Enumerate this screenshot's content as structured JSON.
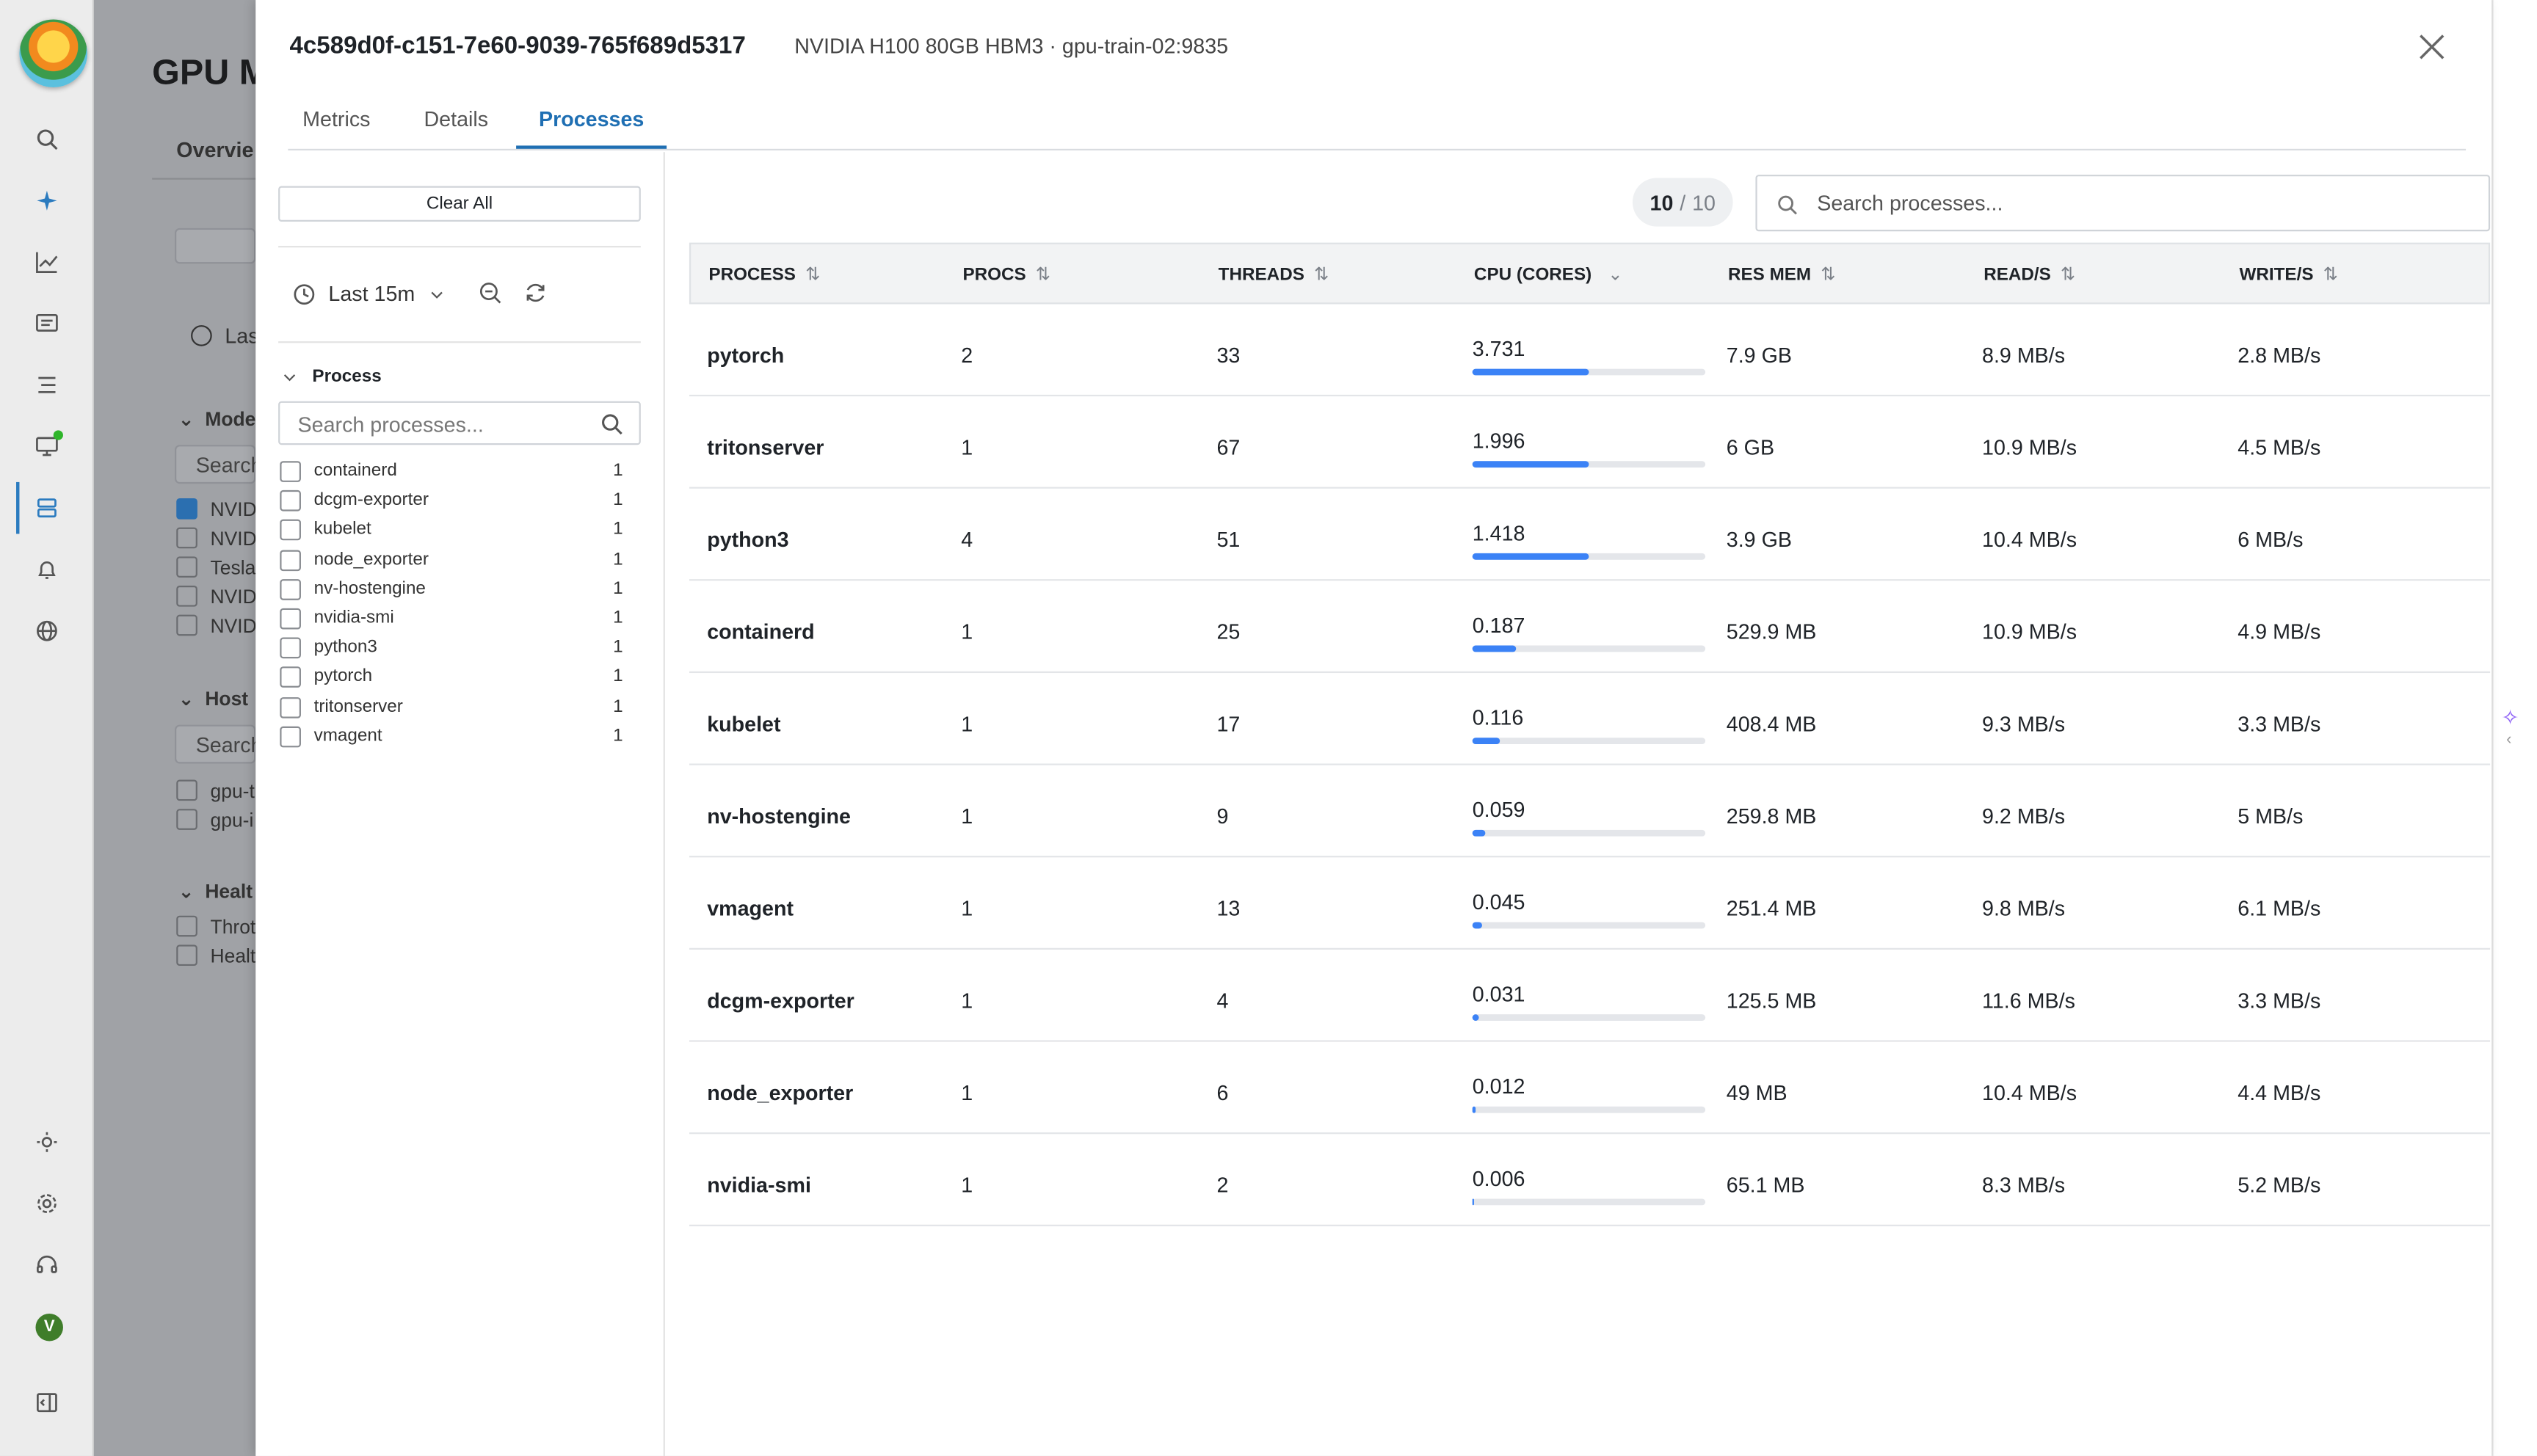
{
  "background": {
    "title": "GPU M",
    "tab": "Overvie",
    "time": "Las",
    "sections": {
      "model": "Mode",
      "host": "Host",
      "health": "Healt"
    },
    "search_placeholder": "Search",
    "model_items": [
      "NVID",
      "NVID",
      "Tesla",
      "NVID",
      "NVID"
    ],
    "host_items": [
      "gpu-t",
      "gpu-i"
    ],
    "health_items": [
      "Throt",
      "Healt"
    ]
  },
  "drawer": {
    "gpu_id": "4c589d0f-c151-7e60-9039-765f689d5317",
    "gpu_subtitle": "NVIDIA H100 80GB HBM3 · gpu-train-02:9835",
    "tabs": [
      {
        "label": "Metrics",
        "active": false
      },
      {
        "label": "Details",
        "active": false
      },
      {
        "label": "Processes",
        "active": true
      }
    ]
  },
  "filters": {
    "clear_all": "Clear All",
    "time_range": "Last 15m",
    "process_heading": "Process",
    "search_placeholder": "Search processes...",
    "items": [
      {
        "label": "containerd",
        "count": "1"
      },
      {
        "label": "dcgm-exporter",
        "count": "1"
      },
      {
        "label": "kubelet",
        "count": "1"
      },
      {
        "label": "node_exporter",
        "count": "1"
      },
      {
        "label": "nv-hostengine",
        "count": "1"
      },
      {
        "label": "nvidia-smi",
        "count": "1"
      },
      {
        "label": "python3",
        "count": "1"
      },
      {
        "label": "pytorch",
        "count": "1"
      },
      {
        "label": "tritonserver",
        "count": "1"
      },
      {
        "label": "vmagent",
        "count": "1"
      }
    ]
  },
  "table": {
    "count_shown": "10",
    "count_sep": "/",
    "count_total": "10",
    "search_placeholder": "Search processes...",
    "columns": [
      "PROCESS",
      "PROCS",
      "THREADS",
      "CPU (CORES)",
      "RES MEM",
      "READ/S",
      "WRITE/S"
    ],
    "rows": [
      {
        "process": "pytorch",
        "procs": "2",
        "threads": "33",
        "cpu": "3.731",
        "cpu_fill": 0.5,
        "res_mem": "7.9 GB",
        "read": "8.9 MB/s",
        "write": "2.8 MB/s"
      },
      {
        "process": "tritonserver",
        "procs": "1",
        "threads": "67",
        "cpu": "1.996",
        "cpu_fill": 0.5,
        "res_mem": "6 GB",
        "read": "10.9 MB/s",
        "write": "4.5 MB/s"
      },
      {
        "process": "python3",
        "procs": "4",
        "threads": "51",
        "cpu": "1.418",
        "cpu_fill": 0.5,
        "res_mem": "3.9 GB",
        "read": "10.4 MB/s",
        "write": "6 MB/s"
      },
      {
        "process": "containerd",
        "procs": "1",
        "threads": "25",
        "cpu": "0.187",
        "cpu_fill": 0.187,
        "res_mem": "529.9 MB",
        "read": "10.9 MB/s",
        "write": "4.9 MB/s"
      },
      {
        "process": "kubelet",
        "procs": "1",
        "threads": "17",
        "cpu": "0.116",
        "cpu_fill": 0.116,
        "res_mem": "408.4 MB",
        "read": "9.3 MB/s",
        "write": "3.3 MB/s"
      },
      {
        "process": "nv-hostengine",
        "procs": "1",
        "threads": "9",
        "cpu": "0.059",
        "cpu_fill": 0.059,
        "res_mem": "259.8 MB",
        "read": "9.2 MB/s",
        "write": "5 MB/s"
      },
      {
        "process": "vmagent",
        "procs": "1",
        "threads": "13",
        "cpu": "0.045",
        "cpu_fill": 0.045,
        "res_mem": "251.4 MB",
        "read": "9.8 MB/s",
        "write": "6.1 MB/s"
      },
      {
        "process": "dcgm-exporter",
        "procs": "1",
        "threads": "4",
        "cpu": "0.031",
        "cpu_fill": 0.031,
        "res_mem": "125.5 MB",
        "read": "11.6 MB/s",
        "write": "3.3 MB/s"
      },
      {
        "process": "node_exporter",
        "procs": "1",
        "threads": "6",
        "cpu": "0.012",
        "cpu_fill": 0.012,
        "res_mem": "49 MB",
        "read": "10.4 MB/s",
        "write": "4.4 MB/s"
      },
      {
        "process": "nvidia-smi",
        "procs": "1",
        "threads": "2",
        "cpu": "0.006",
        "cpu_fill": 0.006,
        "res_mem": "65.1 MB",
        "read": "8.3 MB/s",
        "write": "5.2 MB/s"
      }
    ]
  },
  "avatar_initial": "V",
  "colors": {
    "accent": "#1f6fb3",
    "bar": "#3b82f6"
  }
}
